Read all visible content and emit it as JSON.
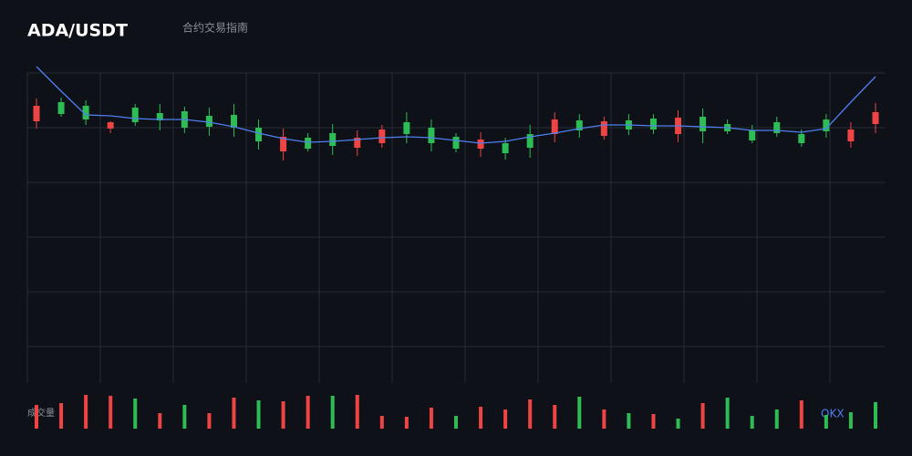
{
  "chart_data": {
    "type": "candlestick",
    "title": "ADA/USDT",
    "subtitle": "合约交易指南",
    "volume_label": "成交量",
    "brand": "OKX",
    "up_color": "#2ebd55",
    "down_color": "#ee4444",
    "ma_color": "#4f7ff0",
    "ylim": [
      0.3,
      0.64
    ],
    "open": [
      0.604,
      0.595,
      0.589,
      0.586,
      0.586,
      0.588,
      0.58,
      0.581,
      0.58,
      0.565,
      0.57,
      0.557,
      0.56,
      0.569,
      0.578,
      0.573,
      0.563,
      0.557,
      0.567,
      0.552,
      0.558,
      0.589,
      0.577,
      0.587,
      0.578,
      0.578,
      0.591,
      0.576,
      0.576,
      0.566,
      0.574,
      0.563,
      0.576,
      0.578,
      0.597
    ],
    "close": [
      0.587,
      0.608,
      0.604,
      0.579,
      0.602,
      0.596,
      0.598,
      0.593,
      0.594,
      0.58,
      0.554,
      0.569,
      0.574,
      0.558,
      0.563,
      0.586,
      0.58,
      0.57,
      0.557,
      0.563,
      0.573,
      0.573,
      0.588,
      0.571,
      0.588,
      0.59,
      0.573,
      0.592,
      0.584,
      0.577,
      0.586,
      0.573,
      0.589,
      0.565,
      0.584
    ],
    "high": [
      0.612,
      0.613,
      0.61,
      0.587,
      0.606,
      0.606,
      0.603,
      0.602,
      0.606,
      0.589,
      0.579,
      0.574,
      0.584,
      0.577,
      0.583,
      0.597,
      0.589,
      0.574,
      0.575,
      0.569,
      0.583,
      0.597,
      0.595,
      0.592,
      0.595,
      0.595,
      0.599,
      0.601,
      0.589,
      0.583,
      0.592,
      0.578,
      0.595,
      0.586,
      0.607
    ],
    "low": [
      0.579,
      0.592,
      0.583,
      0.574,
      0.582,
      0.577,
      0.574,
      0.571,
      0.57,
      0.556,
      0.544,
      0.554,
      0.55,
      0.549,
      0.558,
      0.563,
      0.554,
      0.553,
      0.548,
      0.545,
      0.547,
      0.564,
      0.569,
      0.567,
      0.572,
      0.573,
      0.564,
      0.563,
      0.573,
      0.563,
      0.57,
      0.559,
      0.569,
      0.558,
      0.574
    ],
    "ma": [
      0.647,
      0.62,
      0.594,
      0.593,
      0.59,
      0.589,
      0.589,
      0.586,
      0.581,
      0.574,
      0.568,
      0.564,
      0.565,
      0.567,
      0.569,
      0.57,
      0.569,
      0.566,
      0.563,
      0.565,
      0.57,
      0.574,
      0.579,
      0.583,
      0.583,
      0.582,
      0.582,
      0.581,
      0.58,
      0.577,
      0.577,
      0.575,
      0.579,
      0.608,
      0.636
    ],
    "volume": [
      26,
      28,
      37,
      36,
      33,
      17,
      26,
      17,
      34,
      31,
      30,
      36,
      36,
      37,
      14,
      13,
      23,
      14,
      24,
      21,
      32,
      26,
      35,
      21,
      17,
      16,
      11,
      28,
      34,
      14,
      21,
      31,
      15,
      18,
      29
    ],
    "volume_up": [
      false,
      false,
      false,
      false,
      true,
      false,
      true,
      false,
      false,
      true,
      false,
      false,
      true,
      false,
      false,
      false,
      false,
      true,
      false,
      false,
      false,
      false,
      true,
      false,
      true,
      false,
      true,
      false,
      true,
      true,
      true,
      false,
      true,
      true,
      true
    ]
  }
}
